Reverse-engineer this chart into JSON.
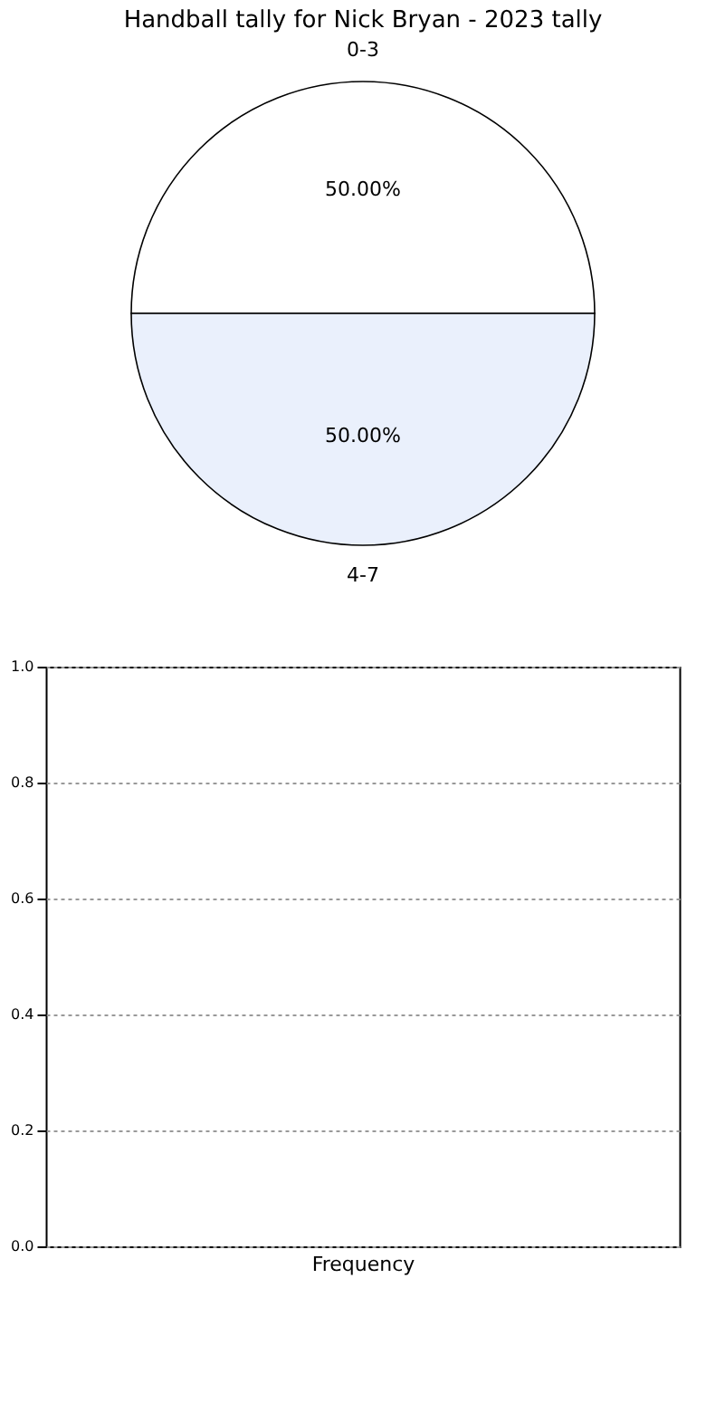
{
  "chart_data": [
    {
      "type": "pie",
      "title": "Handball tally for Nick Bryan - 2023 tally",
      "categories": [
        "0-3",
        "4-7"
      ],
      "values": [
        50,
        50
      ],
      "colors": [
        "#ffffff",
        "#eaf0fc"
      ],
      "value_labels": [
        "50.00%",
        "50.00%"
      ]
    },
    {
      "type": "bar",
      "xlabel": "Frequency",
      "categories": [
        null
      ],
      "values": [
        null
      ],
      "ylim": [
        0,
        1
      ],
      "yticks": [
        {
          "value": 0,
          "label": "0.0"
        },
        0.2,
        0.4,
        0.6,
        0.8,
        {
          "value": 1,
          "label": "1.0"
        }
      ],
      "grid": "y"
    }
  ]
}
